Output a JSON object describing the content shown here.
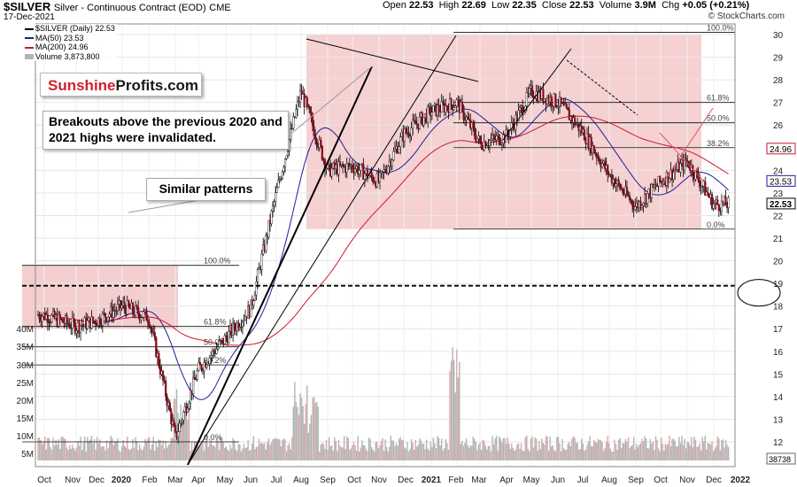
{
  "header": {
    "symbol": "$SILVER",
    "contract": "Silver - Continuous Contract (EOD)",
    "exchange": "CME",
    "date": "17-Dec-2021",
    "open_label": "Open",
    "open": "22.53",
    "high_label": "High",
    "high": "22.69",
    "low_label": "Low",
    "low": "22.35",
    "close_label": "Close",
    "close": "22.53",
    "volume_label": "Volume",
    "volume": "3.9M",
    "chg_label": "Chg",
    "chg": "+0.05 (+0.21%)",
    "watermark": "© StockCharts.com"
  },
  "legend": {
    "price": "$SILVER (Daily) 22.53",
    "ma50": "MA(50) 23.53",
    "ma200": "MA(200) 24.96",
    "volume": "Volume 3,873,800"
  },
  "logo": {
    "part1": "Sunshine",
    "part2": "Profits.com"
  },
  "annotations": {
    "breakouts": "Breakouts above the previous 2020 and 2021 highs were invalidated.",
    "patterns": "Similar patterns"
  },
  "colors": {
    "candle_up": "#ffffff",
    "candle_down": "#8b0a1a",
    "candle_wick": "#000000",
    "ma50": "#1f1f9a",
    "ma200": "#d2162e",
    "shade": "#f2c6c6",
    "volume_bar": "#b3b3b3",
    "volume_highlight": "#e8a4a4",
    "pink_lines": "#e0506a"
  },
  "chart_data": {
    "type": "candlestick",
    "title": "$SILVER Silver - Continuous Contract (EOD)",
    "x_ticks": [
      "Oct",
      "Nov",
      "Dec",
      "2020",
      "Feb",
      "Mar",
      "Apr",
      "May",
      "Jun",
      "Jul",
      "Aug",
      "Sep",
      "Oct",
      "Nov",
      "Dec",
      "2021",
      "Feb",
      "Mar",
      "Apr",
      "May",
      "Jun",
      "Jul",
      "Aug",
      "Sep",
      "Oct",
      "Nov",
      "Dec",
      "2022"
    ],
    "x_bold": [
      "2020",
      "2021",
      "2022"
    ],
    "y_ticks": [
      12,
      13,
      14,
      15,
      16,
      17,
      18,
      19,
      20,
      21,
      22,
      23,
      24,
      25,
      26,
      27,
      28,
      29,
      30
    ],
    "ylim": [
      11.5,
      30.2
    ],
    "volume_ticks": [
      "5M",
      "10M",
      "15M",
      "20M",
      "25M",
      "30M",
      "35M",
      "40M"
    ],
    "right_tags": {
      "ma200": "24.96",
      "ma50": "23.53",
      "last": "22.53",
      "volume": "38738"
    },
    "price_path_monthly": [
      [
        "2019-10",
        17.6
      ],
      [
        "2019-11",
        17.1
      ],
      [
        "2019-12",
        17.4
      ],
      [
        "2020-01",
        18.0
      ],
      [
        "2020-02",
        17.5
      ],
      [
        "2020-03",
        12.2
      ],
      [
        "2020-04",
        15.2
      ],
      [
        "2020-05",
        16.6
      ],
      [
        "2020-06",
        17.9
      ],
      [
        "2020-07",
        23.0
      ],
      [
        "2020-08",
        27.5
      ],
      [
        "2020-09",
        24.0
      ],
      [
        "2020-10",
        24.2
      ],
      [
        "2020-11",
        23.5
      ],
      [
        "2020-12",
        25.6
      ],
      [
        "2021-01",
        26.6
      ],
      [
        "2021-02",
        27.0
      ],
      [
        "2021-03",
        25.2
      ],
      [
        "2021-04",
        25.5
      ],
      [
        "2021-05",
        27.5
      ],
      [
        "2021-06",
        27.0
      ],
      [
        "2021-07",
        25.7
      ],
      [
        "2021-08",
        23.8
      ],
      [
        "2021-09",
        22.4
      ],
      [
        "2021-10",
        23.5
      ],
      [
        "2021-11",
        24.4
      ],
      [
        "2021-12",
        22.5
      ]
    ],
    "fib_2019_2020": {
      "labels": [
        "100.0%",
        "61.8%",
        "50.0%",
        "38.2%",
        "0.0%"
      ],
      "values": [
        19.8,
        17.1,
        16.2,
        15.4,
        12.0
      ]
    },
    "fib_2021": {
      "labels": [
        "100.0%",
        "61.8%",
        "50.0%",
        "38.2%",
        "0.0%"
      ],
      "values": [
        30.1,
        27.0,
        26.1,
        25.0,
        21.4
      ]
    },
    "breakout_level": 18.9,
    "ma50_last": 23.53,
    "ma200_last": 24.96,
    "last_close": 22.53
  }
}
